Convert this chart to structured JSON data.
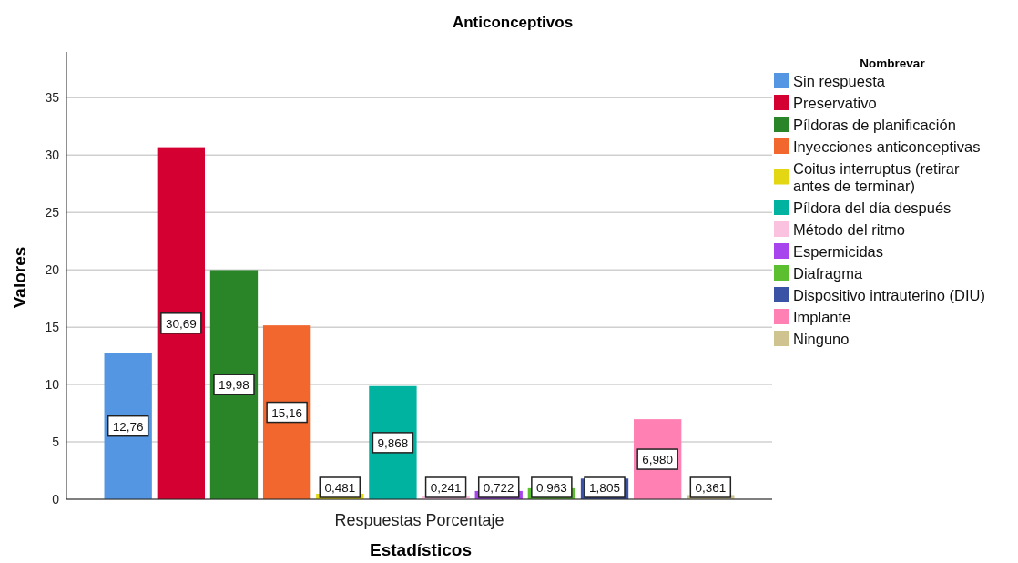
{
  "chart_data": {
    "type": "bar",
    "title": "Anticonceptivos",
    "xlabel": "Estadísticos",
    "ylabel": "Valores",
    "legend_title": "Nombrevar",
    "categories": [
      "Respuestas Porcentaje"
    ],
    "series": [
      {
        "name": "Sin respuesta",
        "color": "#5596e2",
        "values": [
          12.76
        ],
        "value_labels": [
          "12,76"
        ]
      },
      {
        "name": "Preservativo",
        "color": "#d50032",
        "values": [
          30.69
        ],
        "value_labels": [
          "30,69"
        ]
      },
      {
        "name": "Píldoras de planificación",
        "color": "#2a8529",
        "values": [
          19.98
        ],
        "value_labels": [
          "19,98"
        ]
      },
      {
        "name": "Inyecciones anticonceptivas",
        "color": "#f2672e",
        "values": [
          15.16
        ],
        "value_labels": [
          "15,16"
        ]
      },
      {
        "name": "Coitus interruptus (retirar antes de terminar)",
        "color": "#e2d712",
        "values": [
          0.481
        ],
        "value_labels": [
          "0,481"
        ]
      },
      {
        "name": "Píldora del día después",
        "color": "#00b2a0",
        "values": [
          9.868
        ],
        "value_labels": [
          "9,868"
        ]
      },
      {
        "name": "Método del ritmo",
        "color": "#fbc2e0",
        "values": [
          0.241
        ],
        "value_labels": [
          "0,241"
        ]
      },
      {
        "name": "Espermicidas",
        "color": "#a744ee",
        "values": [
          0.722
        ],
        "value_labels": [
          "0,722"
        ]
      },
      {
        "name": "Diafragma",
        "color": "#5bbf30",
        "values": [
          0.963
        ],
        "value_labels": [
          "0,963"
        ]
      },
      {
        "name": "Dispositivo intrauterino (DIU)",
        "color": "#3a53a4",
        "values": [
          1.805
        ],
        "value_labels": [
          "1,805"
        ]
      },
      {
        "name": "Implante",
        "color": "#ff80b3",
        "values": [
          6.98
        ],
        "value_labels": [
          "6,980"
        ]
      },
      {
        "name": "Ninguno",
        "color": "#cfc490",
        "values": [
          0.361
        ],
        "value_labels": [
          "0,361"
        ]
      }
    ],
    "ylim": [
      0,
      39
    ],
    "yticks": [
      0,
      5,
      10,
      15,
      20,
      25,
      30,
      35
    ],
    "grid": "y",
    "legend": "right"
  }
}
